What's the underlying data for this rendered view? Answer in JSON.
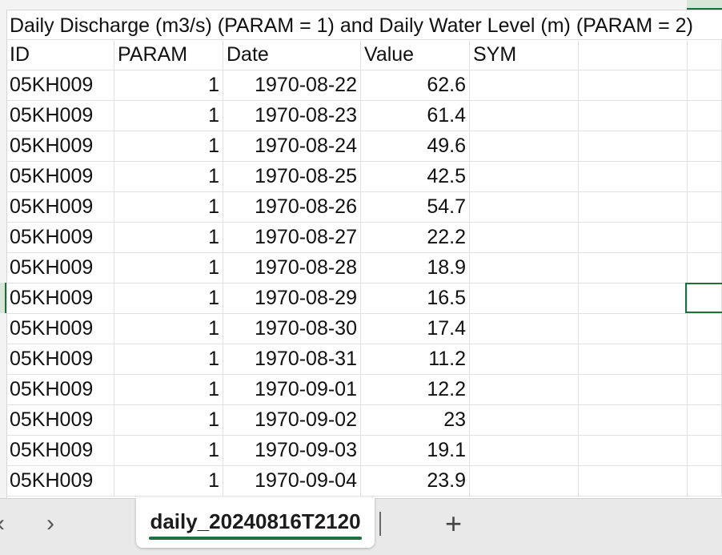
{
  "title": "Daily Discharge (m3/s) (PARAM = 1) and Daily Water Level (m) (PARAM = 2)",
  "columns": [
    "ID",
    "PARAM",
    "Date",
    "Value",
    "SYM"
  ],
  "rows": [
    {
      "id": "05KH009",
      "param": "1",
      "date": "1970-08-22",
      "value": "62.6"
    },
    {
      "id": "05KH009",
      "param": "1",
      "date": "1970-08-23",
      "value": "61.4"
    },
    {
      "id": "05KH009",
      "param": "1",
      "date": "1970-08-24",
      "value": "49.6"
    },
    {
      "id": "05KH009",
      "param": "1",
      "date": "1970-08-25",
      "value": "42.5"
    },
    {
      "id": "05KH009",
      "param": "1",
      "date": "1970-08-26",
      "value": "54.7"
    },
    {
      "id": "05KH009",
      "param": "1",
      "date": "1970-08-27",
      "value": "22.2"
    },
    {
      "id": "05KH009",
      "param": "1",
      "date": "1970-08-28",
      "value": "18.9"
    },
    {
      "id": "05KH009",
      "param": "1",
      "date": "1970-08-29",
      "value": "16.5"
    },
    {
      "id": "05KH009",
      "param": "1",
      "date": "1970-08-30",
      "value": "17.4"
    },
    {
      "id": "05KH009",
      "param": "1",
      "date": "1970-08-31",
      "value": "11.2"
    },
    {
      "id": "05KH009",
      "param": "1",
      "date": "1970-09-01",
      "value": "12.2"
    },
    {
      "id": "05KH009",
      "param": "1",
      "date": "1970-09-02",
      "value": "23"
    },
    {
      "id": "05KH009",
      "param": "1",
      "date": "1970-09-03",
      "value": "19.1"
    },
    {
      "id": "05KH009",
      "param": "1",
      "date": "1970-09-04",
      "value": "23.9"
    }
  ],
  "sheet_tab": {
    "name": "daily_20240816T2120"
  },
  "tabbar": {
    "prev_icon": "‹",
    "next_icon": "›",
    "add_icon": "+"
  },
  "colors": {
    "accent": "#1e6e3e",
    "gridline": "#e1e1e1",
    "tabbar_bg": "#e9e9e9"
  }
}
